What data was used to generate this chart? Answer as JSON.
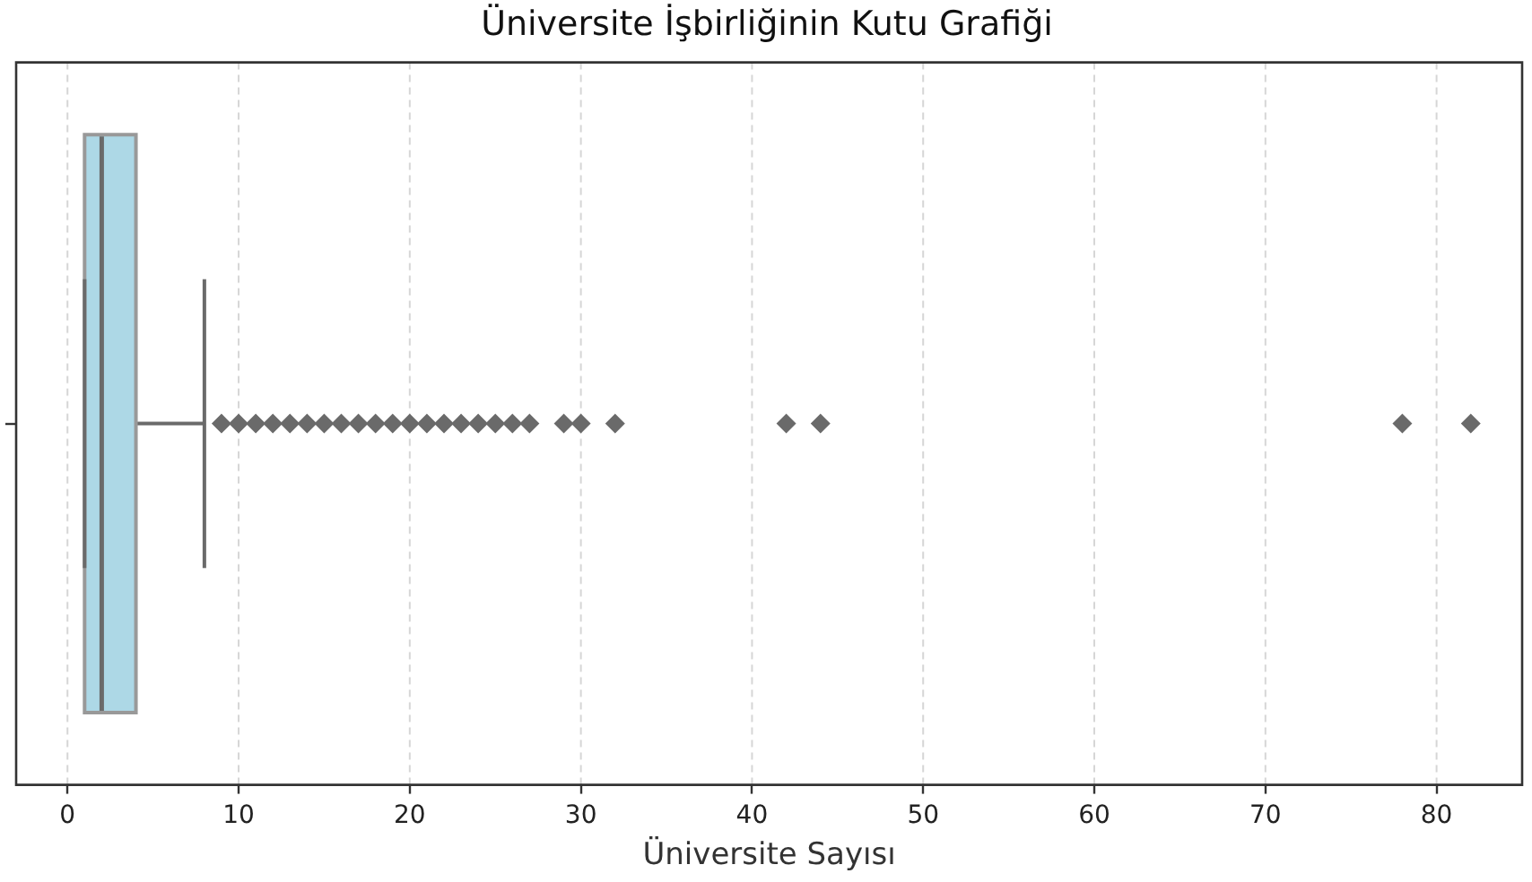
{
  "chart_data": {
    "type": "box",
    "title": "Üniversite İşbirliğinin Kutu Grafiği",
    "xlabel": "Üniversite Sayısı",
    "orientation": "horizontal",
    "categories": [
      null
    ],
    "series": [
      {
        "color": "#add8e6",
        "boxes": [
          {
            "low": 1,
            "q1": 1,
            "median": 2,
            "q3": 4,
            "high": 8,
            "outliers": [
              9,
              10,
              11,
              12,
              13,
              14,
              15,
              16,
              17,
              18,
              19,
              20,
              21,
              22,
              23,
              24,
              25,
              26,
              27,
              29,
              30,
              32,
              42,
              44,
              78,
              82
            ]
          }
        ]
      }
    ],
    "xlim": [
      -3,
      85
    ],
    "xticks": [
      0,
      10,
      20,
      30,
      40,
      50,
      60,
      70,
      80
    ],
    "grid": "x",
    "marker": "diamond"
  }
}
